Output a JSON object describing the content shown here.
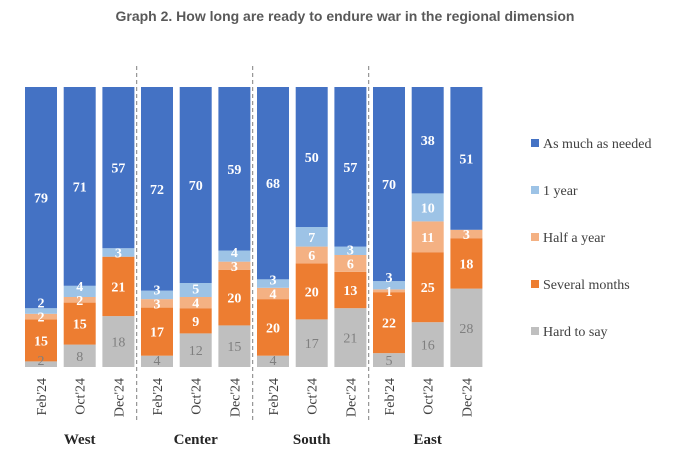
{
  "chart_data": {
    "type": "bar",
    "stacked": true,
    "title": "Graph 2. How long are ready to endure war in the regional dimension",
    "groups": [
      "West",
      "Center",
      "South",
      "East"
    ],
    "categories": [
      "Feb'24",
      "Oct'24",
      "Dec'24"
    ],
    "series": [
      {
        "name": "Hard to say",
        "color": "#BFBFBF",
        "values": [
          [
            2,
            8,
            18
          ],
          [
            4,
            12,
            15
          ],
          [
            4,
            17,
            21
          ],
          [
            5,
            16,
            28
          ]
        ]
      },
      {
        "name": "Several months",
        "color": "#ED7D31",
        "values": [
          [
            15,
            15,
            21
          ],
          [
            17,
            9,
            20
          ],
          [
            20,
            20,
            13
          ],
          [
            22,
            25,
            18
          ]
        ]
      },
      {
        "name": "Half a year",
        "color": "#F4B183",
        "values": [
          [
            2,
            2,
            0
          ],
          [
            3,
            4,
            3
          ],
          [
            4,
            6,
            6
          ],
          [
            1,
            11,
            3
          ]
        ]
      },
      {
        "name": "1 year",
        "color": "#9DC3E6",
        "values": [
          [
            2,
            4,
            3
          ],
          [
            3,
            5,
            4
          ],
          [
            3,
            7,
            3
          ],
          [
            3,
            10,
            0
          ]
        ]
      },
      {
        "name": "As much as needed",
        "color": "#4472C4",
        "values": [
          [
            79,
            71,
            57
          ],
          [
            72,
            70,
            59
          ],
          [
            68,
            50,
            57
          ],
          [
            70,
            38,
            51
          ]
        ]
      }
    ],
    "legend_order": [
      "As much as needed",
      "1 year",
      "Half a year",
      "Several months",
      "Hard to say"
    ],
    "legend_position": "right",
    "ylim": [
      0,
      100
    ],
    "grid": false
  }
}
